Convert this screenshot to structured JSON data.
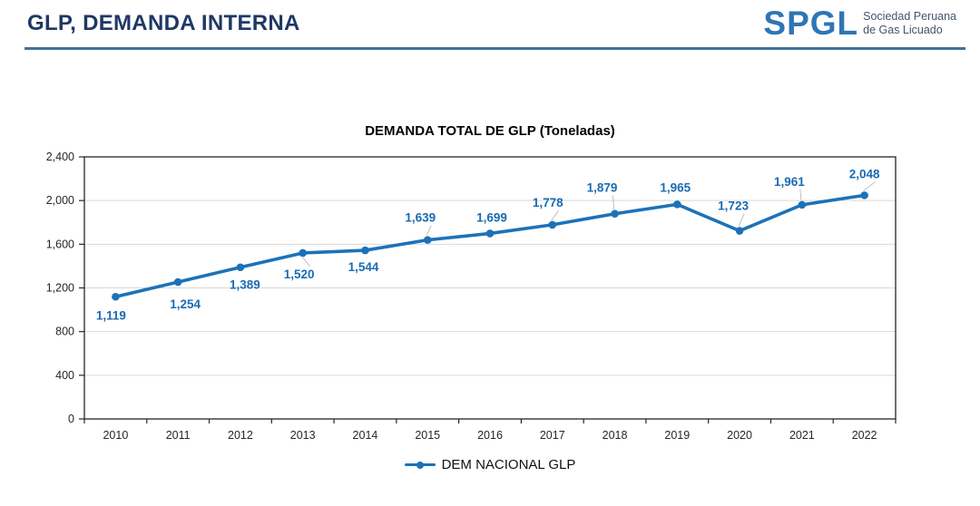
{
  "header": {
    "title": "GLP, DEMANDA INTERNA",
    "title_color": "#1F3864",
    "divider_color": "#41719C",
    "logo": {
      "acronym": "SPGL",
      "acronym_color": "#2E75B6",
      "tagline_line1": "Sociedad Peruana",
      "tagline_line2": "de Gas Licuado",
      "tagline_color": "#44546A"
    }
  },
  "chart_data": {
    "type": "line",
    "title": "DEMANDA TOTAL DE GLP (Toneladas)",
    "categories": [
      "2010",
      "2011",
      "2012",
      "2013",
      "2014",
      "2015",
      "2016",
      "2017",
      "2018",
      "2019",
      "2020",
      "2021",
      "2022"
    ],
    "series": [
      {
        "name": "DEM NACIONAL GLP",
        "color": "#1C72B8",
        "values": [
          1119,
          1254,
          1389,
          1520,
          1544,
          1639,
          1699,
          1778,
          1879,
          1965,
          1723,
          1961,
          2048
        ]
      }
    ],
    "data_labels": [
      "1,119",
      "1,254",
      "1,389",
      "1,520",
      "1,544",
      "1,639",
      "1,699",
      "1,778",
      "1,879",
      "1,965",
      "1,723",
      "1,961",
      "2,048"
    ],
    "xlabel": "",
    "ylabel": "",
    "ylim": [
      0,
      2400
    ],
    "ytick_interval": 400,
    "ytick_labels": [
      "0",
      "400",
      "800",
      "1,200",
      "1,600",
      "2,000",
      "2,400"
    ],
    "grid": "horizontal",
    "gridline_color": "#D9D9D9",
    "axis_color": "#262626",
    "data_label_color": "#1A6BB2",
    "leader_line_color": "#BFBFBF",
    "legend_position": "bottom"
  }
}
